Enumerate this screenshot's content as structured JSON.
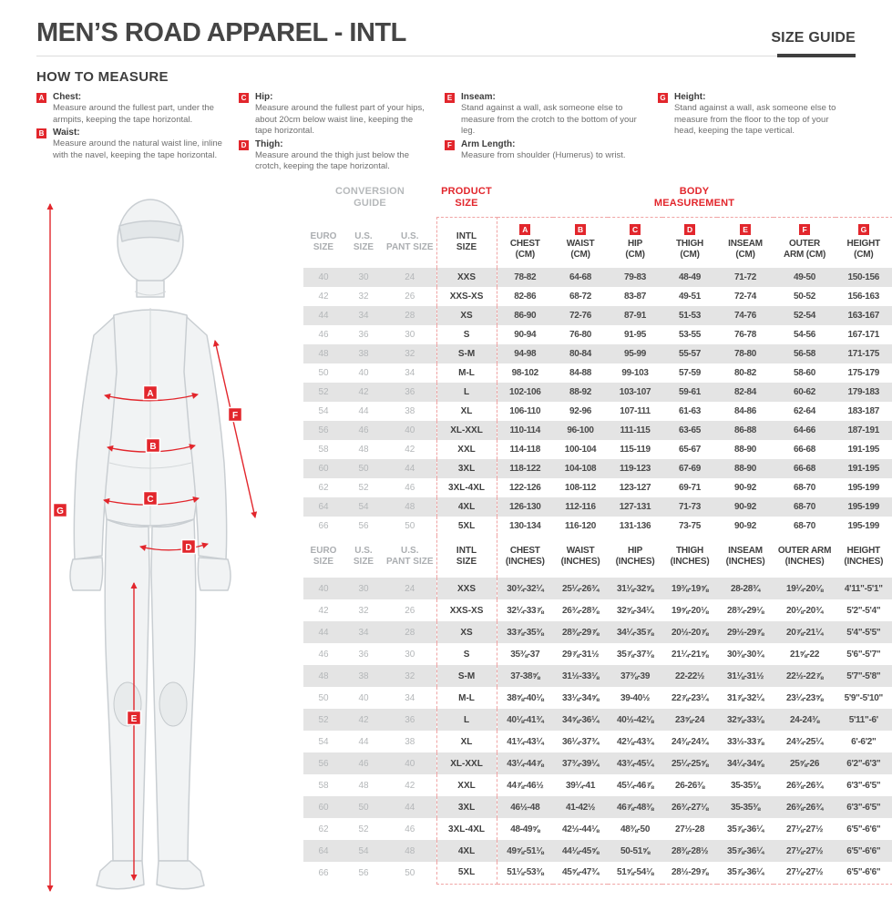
{
  "header": {
    "title": "MEN’S ROAD APPAREL - INTL",
    "size_guide": "SIZE GUIDE"
  },
  "how_to_measure": {
    "heading": "HOW TO MEASURE",
    "columns": [
      [
        {
          "letter": "A",
          "label": "Chest:",
          "desc": "Measure around the fullest part, under the armpits, keeping the tape horizontal."
        },
        {
          "letter": "B",
          "label": "Waist:",
          "desc": "Measure around the natural waist line, inline with the navel, keeping the tape horizontal."
        }
      ],
      [
        {
          "letter": "C",
          "label": "Hip:",
          "desc": "Measure around the fullest part of your hips, about 20cm below waist line, keeping the tape horizontal."
        },
        {
          "letter": "D",
          "label": "Thigh:",
          "desc": "Measure around the thigh just below the crotch, keeping the tape horizontal."
        }
      ],
      [
        {
          "letter": "E",
          "label": "Inseam:",
          "desc": "Stand against a wall, ask someone else to measure from the crotch to the bottom of your leg."
        },
        {
          "letter": "F",
          "label": "Arm Length:",
          "desc": "Measure from shoulder (Humerus) to wrist."
        }
      ],
      [
        {
          "letter": "G",
          "label": "Height:",
          "desc": "Stand against a wall, ask someone else to measure from the floor to the top of your head, keeping the tape vertical."
        }
      ]
    ]
  },
  "figure": {
    "labels": [
      "A",
      "B",
      "C",
      "D",
      "E",
      "F",
      "G"
    ]
  },
  "table": {
    "conversion_guide": "CONVERSION\nGUIDE",
    "product_size": "PRODUCT\nSIZE",
    "body_measurement": "BODY\nMEASUREMENT",
    "size_headers": [
      "EURO\nSIZE",
      "U.S.\nSIZE",
      "U.S.\nPANT SIZE"
    ],
    "intl_header": "INTL\nSIZE",
    "badges": [
      "A",
      "B",
      "C",
      "D",
      "E",
      "F",
      "G"
    ],
    "cm_headers": [
      "CHEST\n(CM)",
      "WAIST\n(CM)",
      "HIP\n(CM)",
      "THIGH\n(CM)",
      "INSEAM\n(CM)",
      "OUTER\nARM (CM)",
      "HEIGHT\n(CM)"
    ],
    "inch_headers": [
      "CHEST\n(INCHES)",
      "WAIST\n(INCHES)",
      "HIP\n(INCHES)",
      "THIGH\n(INCHES)",
      "INSEAM\n(INCHES)",
      "OUTER ARM\n(INCHES)",
      "HEIGHT\n(INCHES)"
    ],
    "rows_cm": [
      [
        "40",
        "30",
        "24",
        "XXS",
        "78-82",
        "64-68",
        "79-83",
        "48-49",
        "71-72",
        "49-50",
        "150-156"
      ],
      [
        "42",
        "32",
        "26",
        "XXS-XS",
        "82-86",
        "68-72",
        "83-87",
        "49-51",
        "72-74",
        "50-52",
        "156-163"
      ],
      [
        "44",
        "34",
        "28",
        "XS",
        "86-90",
        "72-76",
        "87-91",
        "51-53",
        "74-76",
        "52-54",
        "163-167"
      ],
      [
        "46",
        "36",
        "30",
        "S",
        "90-94",
        "76-80",
        "91-95",
        "53-55",
        "76-78",
        "54-56",
        "167-171"
      ],
      [
        "48",
        "38",
        "32",
        "S-M",
        "94-98",
        "80-84",
        "95-99",
        "55-57",
        "78-80",
        "56-58",
        "171-175"
      ],
      [
        "50",
        "40",
        "34",
        "M-L",
        "98-102",
        "84-88",
        "99-103",
        "57-59",
        "80-82",
        "58-60",
        "175-179"
      ],
      [
        "52",
        "42",
        "36",
        "L",
        "102-106",
        "88-92",
        "103-107",
        "59-61",
        "82-84",
        "60-62",
        "179-183"
      ],
      [
        "54",
        "44",
        "38",
        "XL",
        "106-110",
        "92-96",
        "107-111",
        "61-63",
        "84-86",
        "62-64",
        "183-187"
      ],
      [
        "56",
        "46",
        "40",
        "XL-XXL",
        "110-114",
        "96-100",
        "111-115",
        "63-65",
        "86-88",
        "64-66",
        "187-191"
      ],
      [
        "58",
        "48",
        "42",
        "XXL",
        "114-118",
        "100-104",
        "115-119",
        "65-67",
        "88-90",
        "66-68",
        "191-195"
      ],
      [
        "60",
        "50",
        "44",
        "3XL",
        "118-122",
        "104-108",
        "119-123",
        "67-69",
        "88-90",
        "66-68",
        "191-195"
      ],
      [
        "62",
        "52",
        "46",
        "3XL-4XL",
        "122-126",
        "108-112",
        "123-127",
        "69-71",
        "90-92",
        "68-70",
        "195-199"
      ],
      [
        "64",
        "54",
        "48",
        "4XL",
        "126-130",
        "112-116",
        "127-131",
        "71-73",
        "90-92",
        "68-70",
        "195-199"
      ],
      [
        "66",
        "56",
        "50",
        "5XL",
        "130-134",
        "116-120",
        "131-136",
        "73-75",
        "90-92",
        "68-70",
        "195-199"
      ]
    ],
    "rows_inches": [
      [
        "40",
        "30",
        "24",
        "XXS",
        "30¾-32¼",
        "25¼-26¾",
        "31⅛-32⅝",
        "19⅜-19⅝",
        "28-28¾",
        "19¼-20⅛",
        "4'11\"-5'1\""
      ],
      [
        "42",
        "32",
        "26",
        "XXS-XS",
        "32¼-33⅞",
        "26¾-28⅜",
        "32⅝-34¼",
        "19⅝-20⅛",
        "28¾-29⅛",
        "20⅛-20¾",
        "5'2\"-5'4\""
      ],
      [
        "44",
        "34",
        "28",
        "XS",
        "33⅞-35⅜",
        "28⅜-29⅞",
        "34¼-35⅞",
        "20½-20⅞",
        "29½-29⅞",
        "20⅞-21¼",
        "5'4\"-5'5\""
      ],
      [
        "46",
        "36",
        "30",
        "S",
        "35⅜-37",
        "29⅞-31½",
        "35⅞-37⅜",
        "21¼-21⅝",
        "30⅜-30¾",
        "21⅝-22",
        "5'6\"-5'7\""
      ],
      [
        "48",
        "38",
        "32",
        "S-M",
        "37-38⅝",
        "31½-33⅛",
        "37⅜-39",
        "22-22½",
        "31⅛-31½",
        "22½-22⅞",
        "5'7\"-5'8\""
      ],
      [
        "50",
        "40",
        "34",
        "M-L",
        "38⅝-40⅛",
        "33⅛-34⅝",
        "39-40½",
        "22⅞-23¼",
        "31⅞-32¼",
        "23¼-23⅝",
        "5'9\"-5'10\""
      ],
      [
        "52",
        "42",
        "36",
        "L",
        "40⅛-41¾",
        "34⅝-36¼",
        "40½-42⅛",
        "23⅝-24",
        "32⅝-33⅛",
        "24-24⅜",
        "5'11\"-6'"
      ],
      [
        "54",
        "44",
        "38",
        "XL",
        "41¾-43¼",
        "36¼-37¾",
        "42⅛-43¾",
        "24⅜-24¾",
        "33½-33⅞",
        "24¾-25¼",
        "6'-6'2\""
      ],
      [
        "56",
        "46",
        "40",
        "XL-XXL",
        "43¼-44⅞",
        "37¾-39¼",
        "43¾-45¼",
        "25¼-25⅝",
        "34¼-34⅝",
        "25⅝-26",
        "6'2\"-6'3\""
      ],
      [
        "58",
        "48",
        "42",
        "XXL",
        "44⅞-46½",
        "39¼-41",
        "45¼-46⅞",
        "26-26⅜",
        "35-35⅜",
        "26⅜-26¾",
        "6'3\"-6'5\""
      ],
      [
        "60",
        "50",
        "44",
        "3XL",
        "46½-48",
        "41-42½",
        "46⅞-48⅜",
        "26¾-27⅛",
        "35-35⅜",
        "26⅜-26¾",
        "6'3\"-6'5\""
      ],
      [
        "62",
        "52",
        "46",
        "3XL-4XL",
        "48-49⅝",
        "42½-44⅛",
        "48⅜-50",
        "27½-28",
        "35⅞-36¼",
        "27⅛-27½",
        "6'5\"-6'6\""
      ],
      [
        "64",
        "54",
        "48",
        "4XL",
        "49⅝-51⅛",
        "44⅛-45⅝",
        "50-51⅝",
        "28⅜-28½",
        "35⅞-36¼",
        "27⅛-27½",
        "6'5\"-6'6\""
      ],
      [
        "66",
        "56",
        "50",
        "5XL",
        "51⅛-53⅜",
        "45⅝-47¾",
        "51⅝-54⅛",
        "28½-29⅞",
        "35⅞-36¼",
        "27⅛-27½",
        "6'5\"-6'6\""
      ]
    ]
  }
}
